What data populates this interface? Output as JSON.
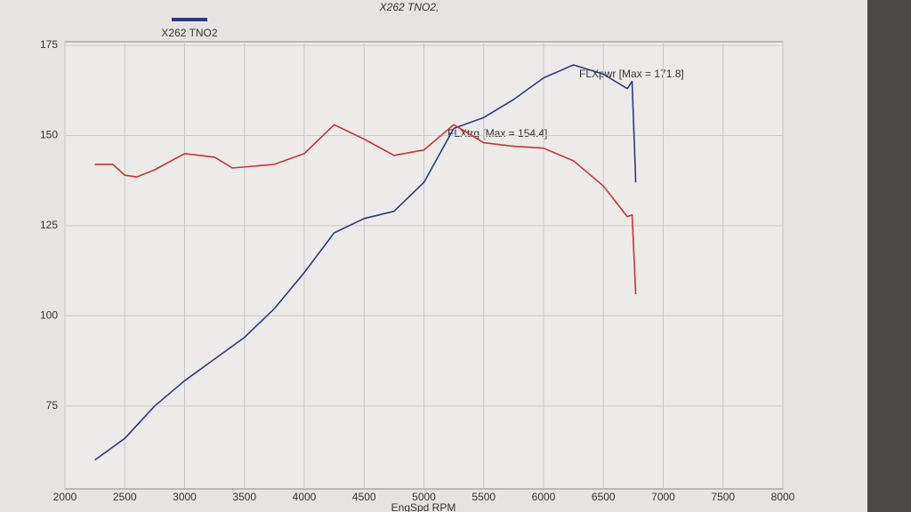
{
  "chart_data": {
    "type": "line",
    "title": "X262 TNO2,",
    "x_label": "EngSpd RPM",
    "xlim": [
      2000,
      8000
    ],
    "xticks": [
      2000,
      2500,
      3000,
      3500,
      4000,
      4500,
      5000,
      5500,
      6000,
      6500,
      7000,
      7500,
      8000
    ],
    "ylim": [
      52,
      176
    ],
    "yticks": [
      75,
      100,
      125,
      150,
      175
    ],
    "grid": true,
    "legend": {
      "name": "X262 TNO2",
      "color": "#2e3a7a"
    },
    "annotations": [
      "FLXpwr [Max = 171.8]",
      "FLXtrq [Max = 154.4]"
    ],
    "series": [
      {
        "name": "FLXpwr",
        "color": "#2e3a7a",
        "x": [
          2250,
          2500,
          2750,
          3000,
          3250,
          3500,
          3750,
          4000,
          4250,
          4500,
          4750,
          5000,
          5250,
          5500,
          5750,
          6000,
          6250,
          6500,
          6700,
          6740,
          6770
        ],
        "values": [
          60,
          66,
          75,
          82,
          88,
          94,
          102,
          112,
          123,
          127,
          129,
          137,
          152,
          155,
          160,
          166,
          169.6,
          167,
          163,
          165,
          137
        ]
      },
      {
        "name": "FLXtrq",
        "color": "#cc3333",
        "x": [
          2250,
          2400,
          2500,
          2600,
          2750,
          3000,
          3250,
          3400,
          3750,
          4000,
          4250,
          4500,
          4750,
          5000,
          5250,
          5500,
          5750,
          6000,
          6250,
          6500,
          6700,
          6740,
          6770
        ],
        "values": [
          142,
          142,
          139,
          138.5,
          140.5,
          145,
          144,
          141,
          142,
          145,
          153,
          149,
          144.5,
          146,
          153,
          148,
          147,
          146.5,
          143,
          136,
          127.5,
          128,
          106
        ]
      }
    ]
  }
}
